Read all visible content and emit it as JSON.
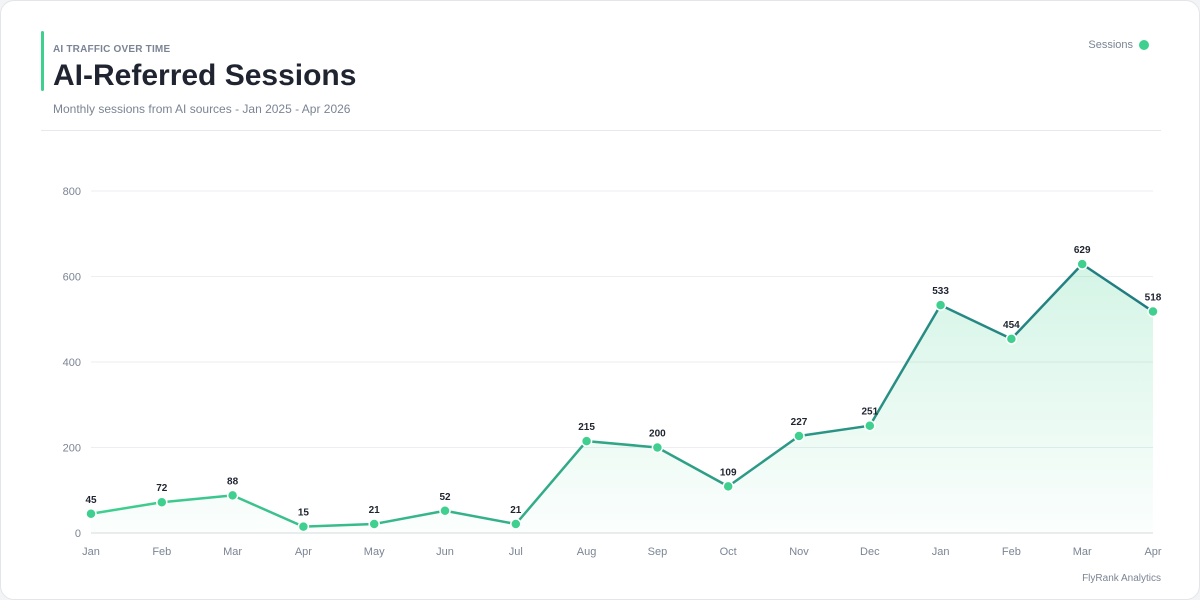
{
  "header": {
    "eyebrow": "AI TRAFFIC OVER TIME",
    "title": "AI-Referred Sessions",
    "subtitle": "Monthly sessions from AI sources - Jan 2025 - Apr 2026"
  },
  "legend": {
    "label": "Sessions"
  },
  "footer": {
    "credit": "FlyRank Analytics"
  },
  "colors": {
    "accent": "#3fd08f",
    "line_start": "#3fd08f",
    "line_end": "#217a80",
    "area_fill": "#3fd08f",
    "grid": "#eceef1",
    "axis": "#d6d9de"
  },
  "chart_data": {
    "type": "line",
    "categories": [
      "Jan",
      "Feb",
      "Mar",
      "Apr",
      "May",
      "Jun",
      "Jul",
      "Aug",
      "Sep",
      "Oct",
      "Nov",
      "Dec",
      "Jan",
      "Feb",
      "Mar",
      "Apr"
    ],
    "series": [
      {
        "name": "Sessions",
        "values": [
          45,
          72,
          88,
          15,
          21,
          52,
          21,
          215,
          200,
          109,
          227,
          251,
          533,
          454,
          629,
          518
        ]
      }
    ],
    "yticks": [
      0,
      200,
      400,
      600,
      800
    ],
    "ylim": [
      0,
      800
    ],
    "grid": true,
    "area_fill": true,
    "data_labels": true,
    "legend_position": "top-right"
  }
}
